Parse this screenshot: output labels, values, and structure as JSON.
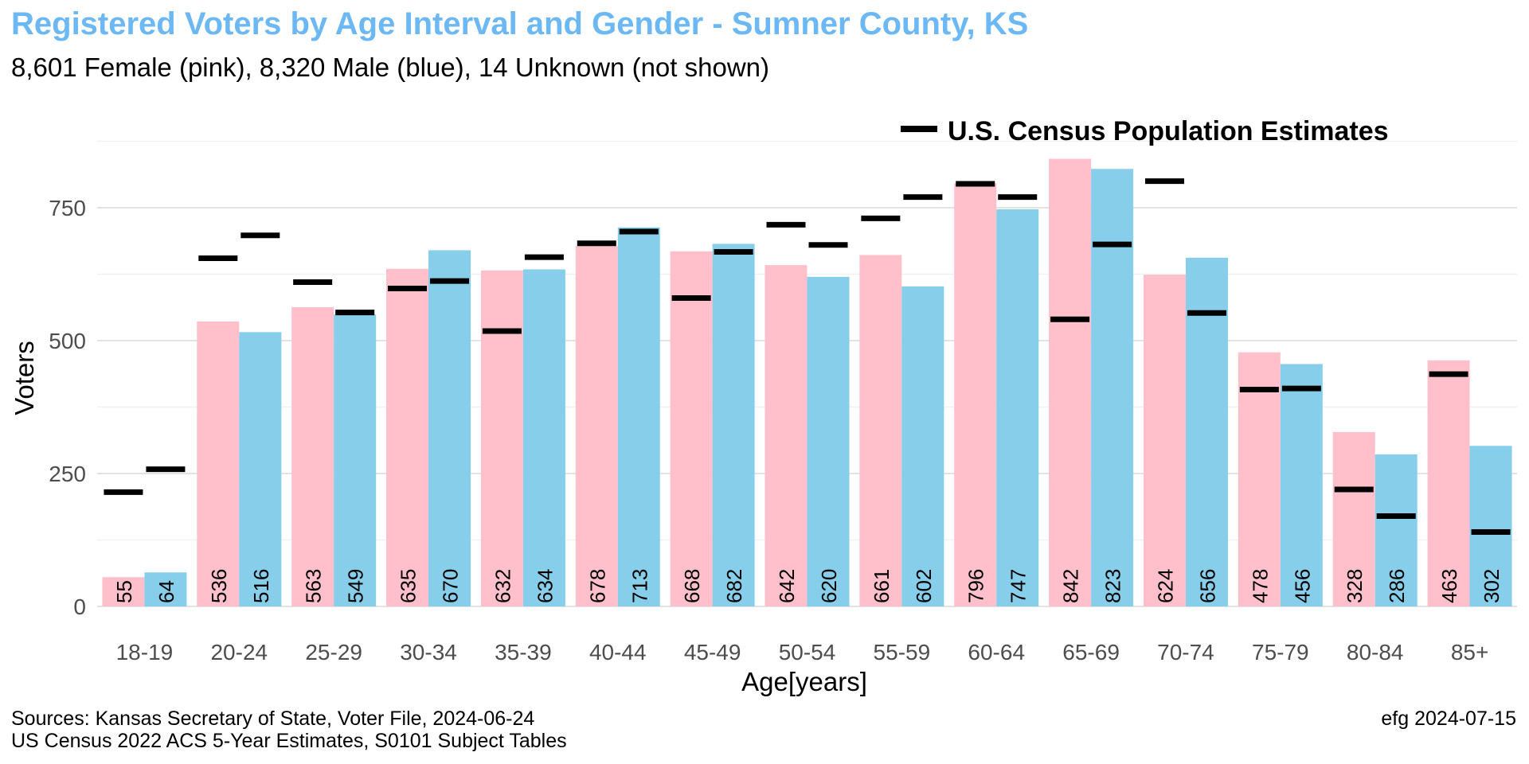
{
  "title": "Registered Voters by Age Interval and Gender - Sumner County, KS",
  "subtitle": "8,601 Female (pink),  8,320 Male (blue),  14 Unknown (not shown)",
  "footer": {
    "source_line1": "Sources: Kansas Secretary of State, Voter File, 2024-06-24",
    "source_line2": "US Census 2022 ACS 5-Year Estimates, S0101 Subject Tables",
    "credit": "efg 2024-07-15"
  },
  "chart_data": {
    "type": "bar",
    "categories": [
      "18-19",
      "20-24",
      "25-29",
      "30-34",
      "35-39",
      "40-44",
      "45-49",
      "50-54",
      "55-59",
      "60-64",
      "65-69",
      "70-74",
      "75-79",
      "80-84",
      "85+"
    ],
    "series": [
      {
        "name": "Female",
        "color": "#ffc0cb",
        "values": [
          55,
          536,
          563,
          635,
          632,
          678,
          668,
          642,
          661,
          796,
          842,
          624,
          478,
          328,
          463
        ]
      },
      {
        "name": "Male",
        "color": "#87ceeb",
        "values": [
          64,
          516,
          549,
          670,
          634,
          713,
          682,
          620,
          602,
          747,
          823,
          656,
          456,
          286,
          302
        ]
      }
    ],
    "census": {
      "name": "U.S. Census Population Estimates",
      "color": "#000000",
      "female": [
        215,
        655,
        610,
        598,
        518,
        683,
        580,
        718,
        730,
        795,
        540,
        800,
        408,
        220,
        437
      ],
      "male": [
        258,
        698,
        553,
        612,
        657,
        705,
        667,
        680,
        770,
        770,
        681,
        552,
        410,
        170,
        140
      ]
    },
    "xlabel": "Age[years]",
    "ylabel": "Voters",
    "yticks": [
      0,
      250,
      500,
      750
    ],
    "ylim": [
      0,
      875
    ],
    "grid": true,
    "legend_position": "top-right"
  }
}
